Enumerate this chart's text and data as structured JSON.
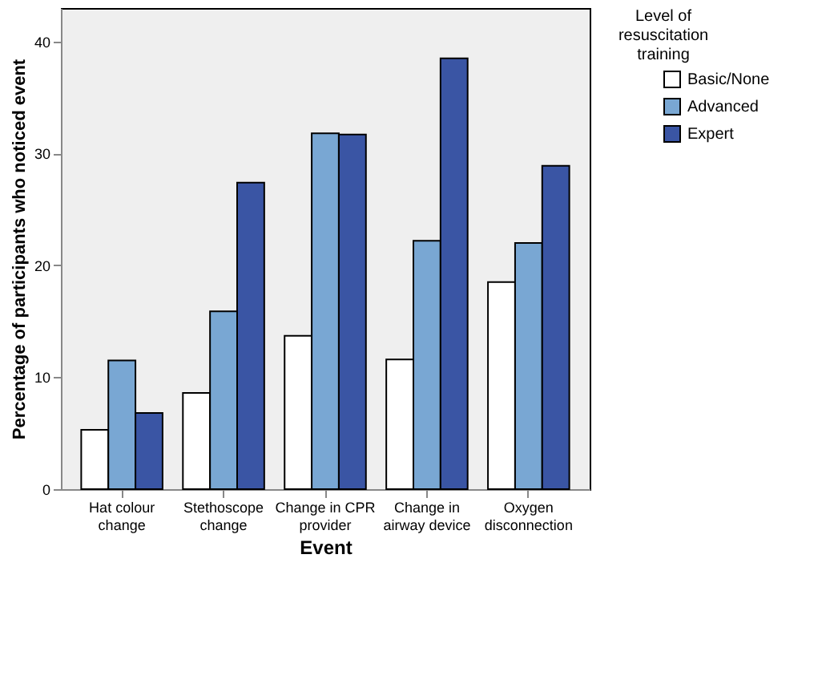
{
  "chart_data": {
    "type": "bar",
    "xlabel": "Event",
    "ylabel": "Percentage of participants who noticed event",
    "legend_title": "Level of resuscitation training",
    "categories": [
      "Hat colour change",
      "Stethoscope change",
      "Change in CPR provider",
      "Change in airway device",
      "Oxygen disconnection"
    ],
    "series": [
      {
        "name": "Basic/None",
        "color": "#ffffff",
        "values": [
          5.3,
          8.6,
          13.7,
          11.6,
          18.5
        ]
      },
      {
        "name": "Advanced",
        "color": "#79a7d3",
        "values": [
          11.5,
          15.9,
          31.8,
          22.2,
          22.0
        ]
      },
      {
        "name": "Expert",
        "color": "#3a55a4",
        "values": [
          6.8,
          27.4,
          31.7,
          38.5,
          28.9
        ]
      }
    ],
    "ylim": [
      0,
      43
    ],
    "yticks": [
      0,
      10,
      20,
      30,
      40
    ],
    "grid": false,
    "legend": "top right"
  }
}
